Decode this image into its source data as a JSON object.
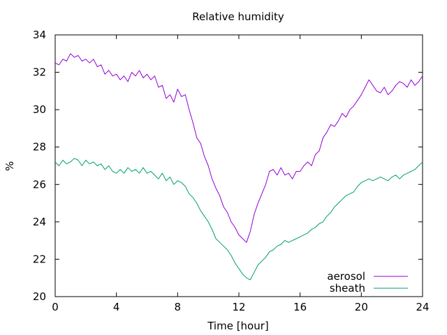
{
  "chart_data": {
    "type": "line",
    "title": "Relative humidity",
    "xlabel": "Time [hour]",
    "ylabel": "%",
    "xlim": [
      0,
      24
    ],
    "ylim": [
      20,
      34
    ],
    "x_ticks": [
      0,
      4,
      8,
      12,
      16,
      20,
      24
    ],
    "y_ticks": [
      20,
      22,
      24,
      26,
      28,
      30,
      32,
      34
    ],
    "grid": false,
    "legend_position": "bottom-right",
    "series": [
      {
        "name": "aerosol",
        "color": "#9400d3",
        "x": [
          0,
          0.25,
          0.5,
          0.75,
          1,
          1.25,
          1.5,
          1.75,
          2,
          2.25,
          2.5,
          2.75,
          3,
          3.25,
          3.5,
          3.75,
          4,
          4.25,
          4.5,
          4.75,
          5,
          5.25,
          5.5,
          5.75,
          6,
          6.25,
          6.5,
          6.75,
          7,
          7.25,
          7.5,
          7.75,
          8,
          8.25,
          8.5,
          8.75,
          9,
          9.25,
          9.5,
          9.75,
          10,
          10.25,
          10.5,
          10.75,
          11,
          11.25,
          11.5,
          11.75,
          12,
          12.25,
          12.5,
          12.75,
          13,
          13.25,
          13.5,
          13.75,
          14,
          14.25,
          14.5,
          14.75,
          15,
          15.25,
          15.5,
          15.75,
          16,
          16.25,
          16.5,
          16.75,
          17,
          17.25,
          17.5,
          17.75,
          18,
          18.25,
          18.5,
          18.75,
          19,
          19.25,
          19.5,
          19.75,
          20,
          20.25,
          20.5,
          20.75,
          21,
          21.25,
          21.5,
          21.75,
          22,
          22.25,
          22.5,
          22.75,
          23,
          23.25,
          23.5,
          23.75,
          24
        ],
        "y": [
          32.5,
          32.4,
          32.7,
          32.6,
          33.0,
          32.8,
          32.9,
          32.6,
          32.7,
          32.5,
          32.7,
          32.3,
          32.4,
          31.9,
          32.1,
          31.8,
          31.9,
          31.6,
          31.8,
          31.5,
          32.0,
          31.8,
          32.1,
          31.7,
          31.9,
          31.6,
          31.8,
          31.2,
          31.3,
          30.6,
          30.8,
          30.4,
          31.1,
          30.7,
          30.8,
          30.0,
          29.3,
          28.5,
          28.2,
          27.5,
          27.0,
          26.3,
          25.8,
          25.4,
          24.8,
          24.5,
          24.0,
          23.7,
          23.3,
          23.1,
          22.9,
          23.5,
          24.4,
          25.0,
          25.5,
          26.0,
          26.7,
          26.8,
          26.5,
          26.9,
          26.5,
          26.6,
          26.3,
          26.7,
          26.7,
          27.0,
          27.2,
          27.0,
          27.6,
          27.8,
          28.5,
          28.8,
          29.2,
          29.1,
          29.4,
          29.8,
          29.6,
          30.0,
          30.2,
          30.5,
          30.8,
          31.2,
          31.6,
          31.3,
          31.0,
          30.9,
          31.2,
          30.8,
          31.0,
          31.3,
          31.5,
          31.4,
          31.2,
          31.6,
          31.3,
          31.5,
          31.8
        ]
      },
      {
        "name": "sheath",
        "color": "#009e73",
        "x": [
          0,
          0.25,
          0.5,
          0.75,
          1,
          1.25,
          1.5,
          1.75,
          2,
          2.25,
          2.5,
          2.75,
          3,
          3.25,
          3.5,
          3.75,
          4,
          4.25,
          4.5,
          4.75,
          5,
          5.25,
          5.5,
          5.75,
          6,
          6.25,
          6.5,
          6.75,
          7,
          7.25,
          7.5,
          7.75,
          8,
          8.25,
          8.5,
          8.75,
          9,
          9.25,
          9.5,
          9.75,
          10,
          10.25,
          10.5,
          10.75,
          11,
          11.25,
          11.5,
          11.75,
          12,
          12.25,
          12.5,
          12.75,
          13,
          13.25,
          13.5,
          13.75,
          14,
          14.25,
          14.5,
          14.75,
          15,
          15.25,
          15.5,
          15.75,
          16,
          16.25,
          16.5,
          16.75,
          17,
          17.25,
          17.5,
          17.75,
          18,
          18.25,
          18.5,
          18.75,
          19,
          19.25,
          19.5,
          19.75,
          20,
          20.25,
          20.5,
          20.75,
          21,
          21.25,
          21.5,
          21.75,
          22,
          22.25,
          22.5,
          22.75,
          23,
          23.25,
          23.5,
          23.75,
          24
        ],
        "y": [
          27.2,
          27.0,
          27.3,
          27.1,
          27.2,
          27.4,
          27.3,
          27.0,
          27.3,
          27.1,
          27.2,
          27.0,
          27.1,
          26.8,
          27.0,
          26.7,
          26.6,
          26.8,
          26.6,
          26.9,
          26.7,
          26.8,
          26.6,
          26.9,
          26.6,
          26.7,
          26.5,
          26.3,
          26.6,
          26.2,
          26.4,
          26.0,
          26.2,
          26.1,
          25.9,
          25.5,
          25.3,
          25.0,
          24.6,
          24.3,
          24.0,
          23.6,
          23.1,
          22.9,
          22.7,
          22.5,
          22.2,
          21.8,
          21.5,
          21.2,
          21.0,
          20.9,
          21.3,
          21.7,
          21.9,
          22.1,
          22.4,
          22.5,
          22.7,
          22.8,
          23.0,
          22.9,
          23.0,
          23.1,
          23.2,
          23.3,
          23.4,
          23.6,
          23.7,
          23.9,
          24.0,
          24.3,
          24.5,
          24.8,
          25.0,
          25.2,
          25.4,
          25.5,
          25.6,
          25.9,
          26.1,
          26.2,
          26.3,
          26.2,
          26.3,
          26.4,
          26.3,
          26.2,
          26.4,
          26.5,
          26.3,
          26.5,
          26.6,
          26.7,
          26.8,
          27.0,
          27.2
        ]
      }
    ]
  }
}
